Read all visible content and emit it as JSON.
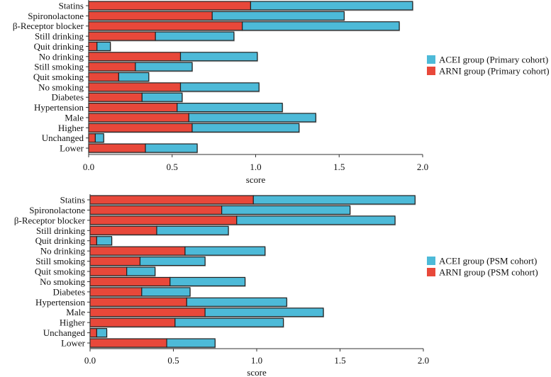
{
  "colors": {
    "acei": "#4DBAD8",
    "arni": "#E8483A",
    "edge": "#222222"
  },
  "chart_data": [
    {
      "type": "bar",
      "orientation": "horizontal",
      "stacked": true,
      "categories": [
        "Statins",
        "Spironolactone",
        "β-Receptor blocker",
        "Still drinking",
        "Quit drinking",
        "No drinking",
        "Still smoking",
        "Quit smoking",
        "No smoking",
        "Diabetes",
        "Hypertension",
        "Male",
        "Higher",
        "Unchanged",
        "Lower"
      ],
      "series": [
        {
          "name": "ARNI group (Primary cohort)",
          "values": [
            0.97,
            0.74,
            0.92,
            0.4,
            0.05,
            0.55,
            0.28,
            0.18,
            0.55,
            0.32,
            0.53,
            0.6,
            0.62,
            0.04,
            0.34
          ]
        },
        {
          "name": "ACEI group (Primary cohort)",
          "values": [
            0.97,
            0.79,
            0.94,
            0.47,
            0.08,
            0.46,
            0.34,
            0.18,
            0.47,
            0.24,
            0.63,
            0.76,
            0.64,
            0.05,
            0.31
          ]
        }
      ],
      "legend": [
        "ACEI group (Primary cohort)",
        "ARNI group (Primary cohort)"
      ],
      "legend_position": "right",
      "xlabel": "score",
      "ylabel": "",
      "xlim": [
        0,
        2.0
      ],
      "xticks": [
        "0.0",
        "0.5",
        "1.0",
        "1.5",
        "2.0"
      ]
    },
    {
      "type": "bar",
      "orientation": "horizontal",
      "stacked": true,
      "categories": [
        "Statins",
        "Spironolactone",
        "β-Receptor blocker",
        "Still drinking",
        "Quit drinking",
        "No drinking",
        "Still smoking",
        "Quit smoking",
        "No smoking",
        "Diabetes",
        "Hypertension",
        "Male",
        "Higher",
        "Unchanged",
        "Lower"
      ],
      "series": [
        {
          "name": "ARNI group (PSM cohort)",
          "values": [
            0.98,
            0.79,
            0.88,
            0.4,
            0.04,
            0.57,
            0.3,
            0.22,
            0.48,
            0.31,
            0.58,
            0.69,
            0.51,
            0.04,
            0.46
          ]
        },
        {
          "name": "ACEI group (PSM cohort)",
          "values": [
            0.97,
            0.77,
            0.95,
            0.43,
            0.09,
            0.48,
            0.39,
            0.17,
            0.45,
            0.29,
            0.6,
            0.71,
            0.65,
            0.06,
            0.29
          ]
        }
      ],
      "legend": [
        "ACEI group (PSM cohort)",
        "ARNI group (PSM cohort)"
      ],
      "legend_position": "right",
      "xlabel": "score",
      "ylabel": "",
      "xlim": [
        0,
        2.0
      ],
      "xticks": [
        "0.0",
        "0.5",
        "1.0",
        "1.5",
        "2.0"
      ]
    }
  ]
}
